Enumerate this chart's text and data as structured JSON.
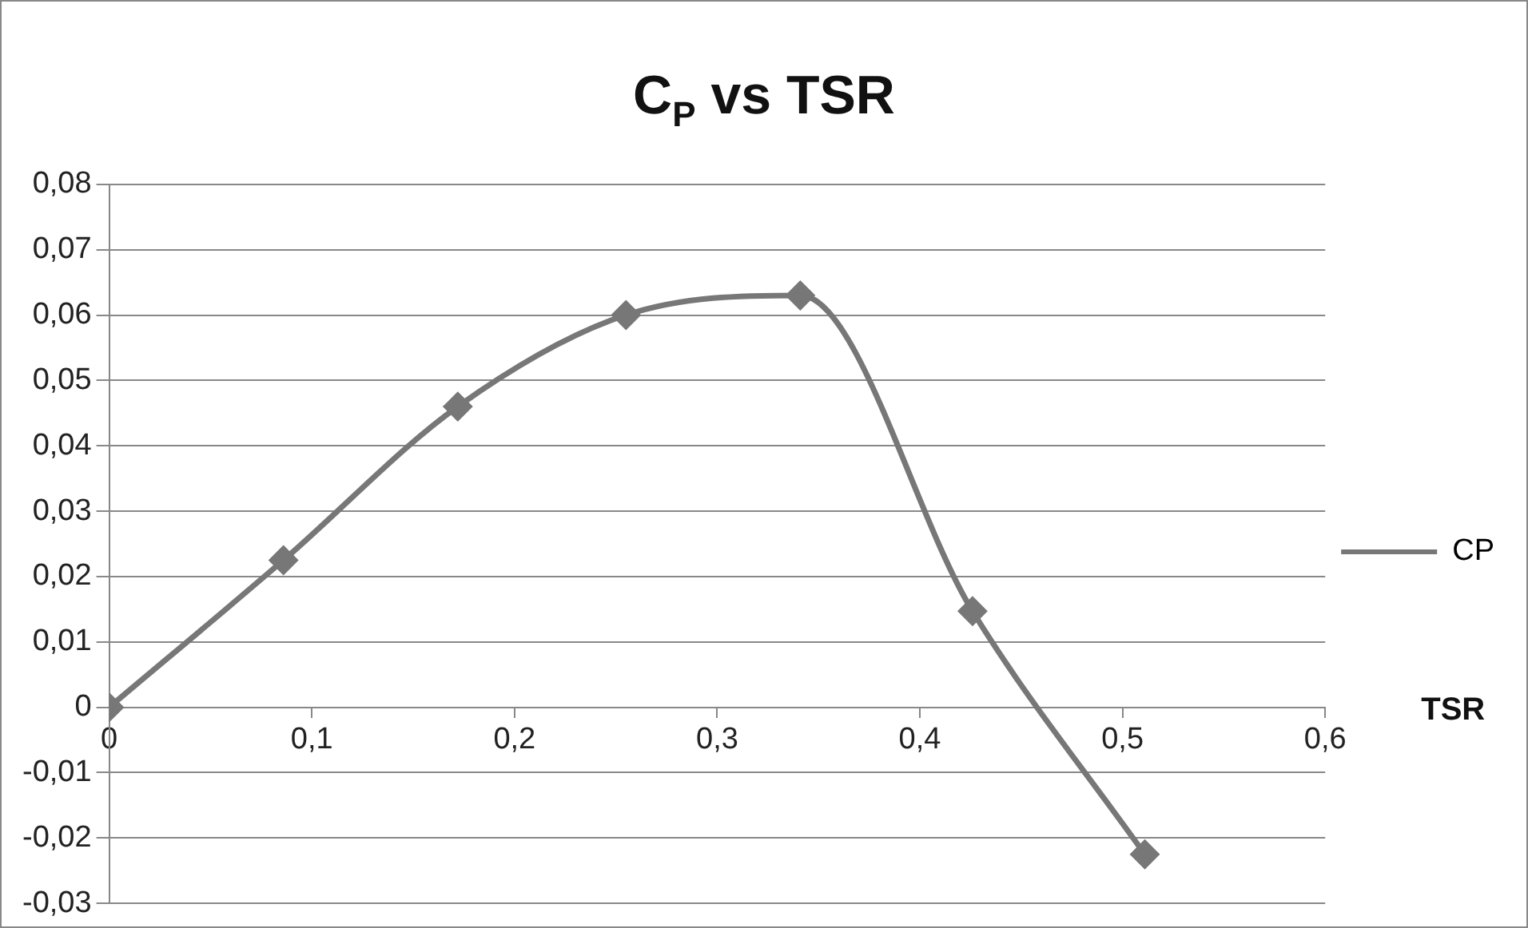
{
  "chart_data": {
    "type": "line",
    "title": "C$_{P}$ vs TSR",
    "xlabel": "TSR",
    "x": [
      0,
      0.086,
      0.172,
      0.255,
      0.341,
      0.426,
      0.511
    ],
    "series": [
      {
        "name": "CP",
        "color": "#777777",
        "values": [
          0,
          0.0225,
          0.046,
          0.06,
          0.063,
          0.0147,
          -0.0225
        ]
      }
    ],
    "xlim": [
      0,
      0.6
    ],
    "xticks": [
      {
        "value": 0,
        "label": "0"
      },
      {
        "value": 0.1,
        "label": "0,1"
      },
      {
        "value": 0.2,
        "label": "0,2"
      },
      {
        "value": 0.3,
        "label": "0,3"
      },
      {
        "value": 0.4,
        "label": "0,4"
      },
      {
        "value": 0.5,
        "label": "0,5"
      },
      {
        "value": 0.6,
        "label": "0,6"
      }
    ],
    "ylim": [
      -0.03,
      0.08
    ],
    "yticks": [
      {
        "value": -0.03,
        "label": "-0,03"
      },
      {
        "value": -0.02,
        "label": "-0,02"
      },
      {
        "value": -0.01,
        "label": "-0,01"
      },
      {
        "value": 0,
        "label": "0"
      },
      {
        "value": 0.01,
        "label": "0,01"
      },
      {
        "value": 0.02,
        "label": "0,02"
      },
      {
        "value": 0.03,
        "label": "0,03"
      },
      {
        "value": 0.04,
        "label": "0,04"
      },
      {
        "value": 0.05,
        "label": "0,05"
      },
      {
        "value": 0.06,
        "label": "0,06"
      },
      {
        "value": 0.07,
        "label": "0,07"
      },
      {
        "value": 0.08,
        "label": "0,08"
      }
    ],
    "grid": "y",
    "legend": "right",
    "marker": "diamond",
    "line_style": "solid"
  }
}
